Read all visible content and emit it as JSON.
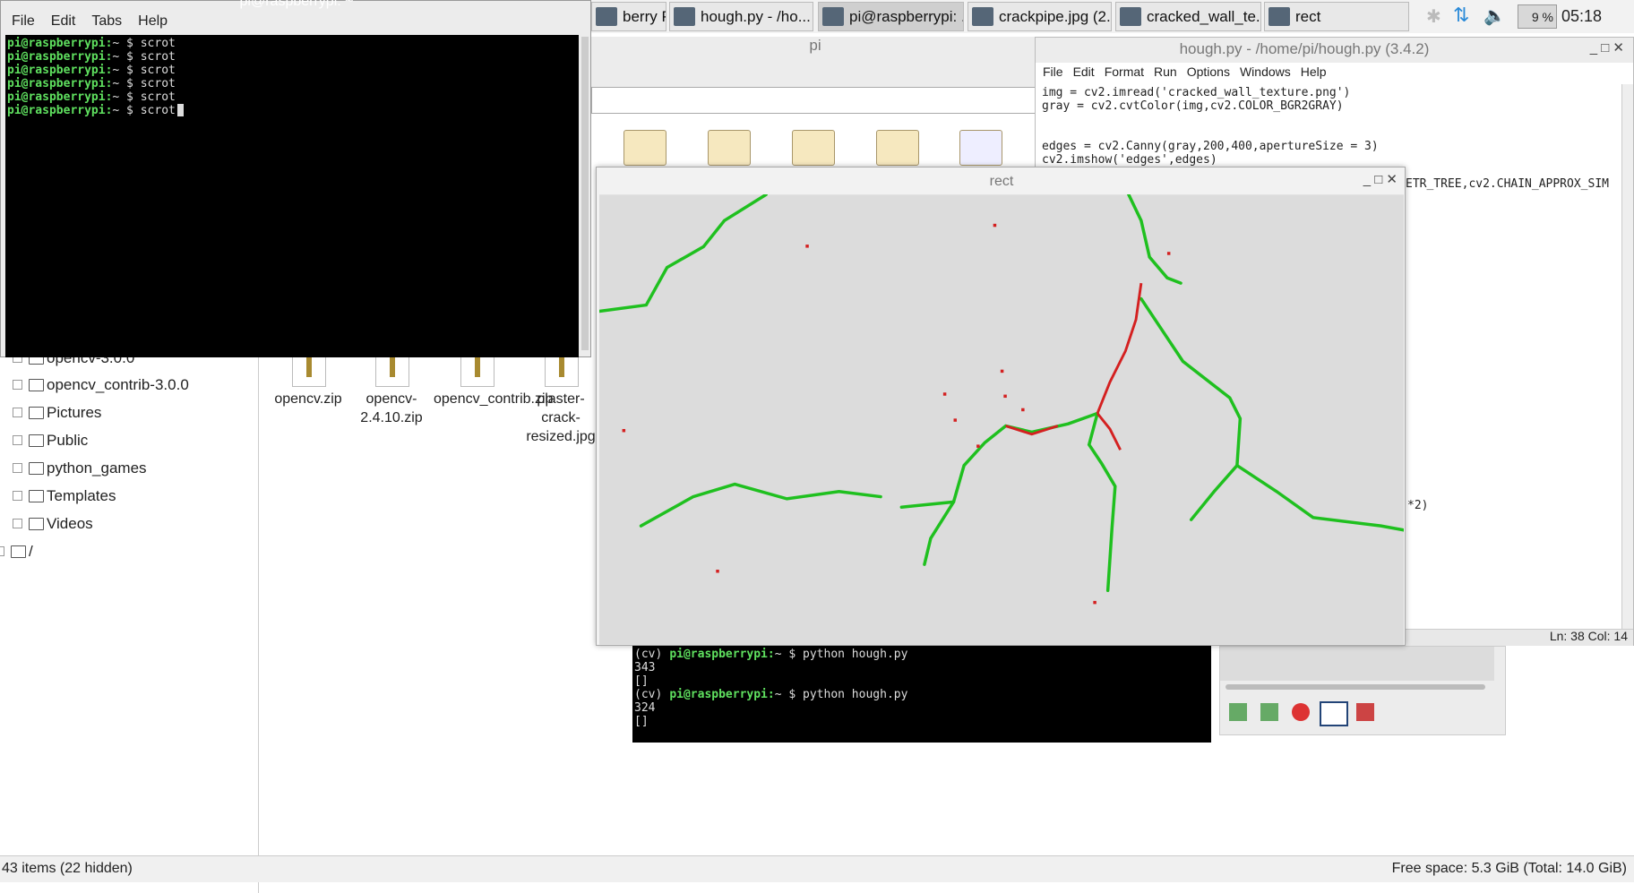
{
  "taskbar": {
    "buttons": [
      "berry Pi Sc...",
      "hough.py - /ho...",
      "pi@raspberrypi: ...",
      "crackpipe.jpg (2...",
      "cracked_wall_te...",
      "rect"
    ],
    "cpu": "9 %",
    "clock": "05:18"
  },
  "file_manager": {
    "title": "pi",
    "tree": [
      "opencv-3.0.0",
      "opencv_contrib-3.0.0",
      "Pictures",
      "Public",
      "python_games",
      "Templates",
      "Videos",
      "/"
    ],
    "files": [
      "opencv.zip",
      "opencv-2.4.10.zip",
      "opencv_contrib.zip",
      "plaster-crack-resized.jpg"
    ],
    "status_left": "43 items (22 hidden)",
    "status_right": "Free space: 5.3 GiB (Total: 14.0 GiB)"
  },
  "terminal": {
    "title": "pi@raspberrypi: ~",
    "menu": [
      "File",
      "Edit",
      "Tabs",
      "Help"
    ],
    "prompt": "pi@raspberrypi:",
    "lines": [
      "~ $ scrot",
      "~ $ scrot",
      "~ $ scrot",
      "~ $ scrot",
      "~ $ scrot",
      "~ $ scrot"
    ]
  },
  "editor": {
    "title": "hough.py - /home/pi/hough.py (3.4.2)",
    "menu": [
      "File",
      "Edit",
      "Format",
      "Run",
      "Options",
      "Windows",
      "Help"
    ],
    "code": [
      "img = cv2.imread('cracked_wall_texture.png')",
      "gray = cv2.cvtColor(img,cv2.COLOR_BGR2GRAY)",
      "edges = cv2.Canny(gray,200,400,apertureSize = 3)",
      "cv2.imshow('edges',edges)"
    ],
    "fragments": [
      "ETR_TREE,cv2.CHAIN_APPROX_SIM",
      "*2)"
    ],
    "status": "Ln: 38 Col: 14"
  },
  "image_window": {
    "title": "rect"
  },
  "terminal2": {
    "lines": [
      {
        "env": "(cv)",
        "prompt": "pi@raspberrypi:",
        "cmd": "~ $ python hough.py"
      },
      {
        "out": "343"
      },
      {
        "out": "[]"
      },
      {
        "env": "(cv)",
        "prompt": "pi@raspberrypi:",
        "cmd": "~ $ python hough.py"
      },
      {
        "out": "324"
      },
      {
        "out": "[]"
      }
    ]
  }
}
